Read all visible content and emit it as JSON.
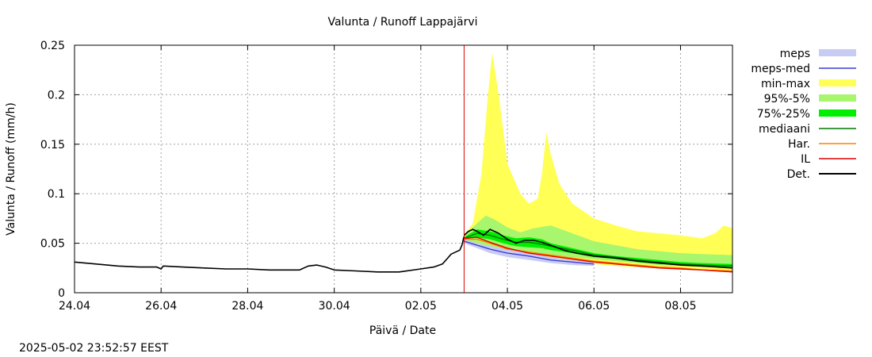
{
  "chart_data": {
    "type": "area",
    "title": "Valunta / Runoff  Lappajärvi",
    "xlabel": "Päivä / Date",
    "ylabel": "Valunta / Runoff (mm/h)",
    "timestamp": "2025-05-02 23:52:57 EEST",
    "x_unit": "days since 24.04",
    "xlim": [
      0,
      15.2
    ],
    "ylim": [
      0,
      0.25
    ],
    "x_ticks": [
      {
        "x": 0,
        "label": "24.04"
      },
      {
        "x": 2,
        "label": "26.04"
      },
      {
        "x": 4,
        "label": "28.04"
      },
      {
        "x": 6,
        "label": "30.04"
      },
      {
        "x": 8,
        "label": "02.05"
      },
      {
        "x": 10,
        "label": "04.05"
      },
      {
        "x": 12,
        "label": "06.05"
      },
      {
        "x": 14,
        "label": "08.05"
      }
    ],
    "y_ticks": [
      {
        "y": 0,
        "label": "0"
      },
      {
        "y": 0.05,
        "label": "0.05"
      },
      {
        "y": 0.1,
        "label": "0.1"
      },
      {
        "y": 0.15,
        "label": "0.15"
      },
      {
        "y": 0.2,
        "label": "0.2"
      },
      {
        "y": 0.25,
        "label": "0.25"
      }
    ],
    "grid": true,
    "forecast_start": 9.0,
    "legend_position": "outside-right",
    "legend": [
      {
        "label": "meps",
        "kind": "band",
        "color": "#c8ccf4"
      },
      {
        "label": "meps-med",
        "kind": "line",
        "color": "#3c3cd2"
      },
      {
        "label": "min-max",
        "kind": "band",
        "color": "#ffff55"
      },
      {
        "label": "95%-5%",
        "kind": "band",
        "color": "#a8f56e"
      },
      {
        "label": "75%-25%",
        "kind": "band",
        "color": "#00ee00"
      },
      {
        "label": "mediaani",
        "kind": "line",
        "color": "#007a00"
      },
      {
        "label": "Har.",
        "kind": "line",
        "color": "#ff8000"
      },
      {
        "label": "IL",
        "kind": "line",
        "color": "#e00000"
      },
      {
        "label": "Det.",
        "kind": "line",
        "color": "#000000"
      }
    ],
    "series": [
      {
        "name": "history",
        "type": "line",
        "color": "#000000",
        "x": [
          0,
          0.5,
          1,
          1.5,
          1.9,
          2.0,
          2.05,
          2.5,
          3,
          3.5,
          4,
          4.5,
          5,
          5.2,
          5.4,
          5.6,
          5.8,
          6,
          6.5,
          7,
          7.5,
          8,
          8.3,
          8.5,
          8.6,
          8.7,
          8.8,
          8.9,
          8.95,
          9.0
        ],
        "y": [
          0.031,
          0.029,
          0.027,
          0.026,
          0.026,
          0.024,
          0.027,
          0.026,
          0.025,
          0.024,
          0.024,
          0.023,
          0.023,
          0.023,
          0.027,
          0.028,
          0.026,
          0.023,
          0.022,
          0.021,
          0.021,
          0.024,
          0.026,
          0.029,
          0.034,
          0.039,
          0.041,
          0.043,
          0.048,
          0.057
        ]
      },
      {
        "name": "min-max",
        "type": "band",
        "color": "#ffff55",
        "x": [
          9.0,
          9.2,
          9.4,
          9.55,
          9.65,
          9.8,
          10.0,
          10.3,
          10.5,
          10.7,
          10.8,
          10.9,
          11.0,
          11.2,
          11.5,
          12.0,
          12.5,
          13.0,
          13.5,
          14.0,
          14.5,
          14.8,
          15.0,
          15.2
        ],
        "upper": [
          0.058,
          0.07,
          0.12,
          0.2,
          0.242,
          0.2,
          0.13,
          0.1,
          0.09,
          0.095,
          0.12,
          0.162,
          0.14,
          0.11,
          0.09,
          0.075,
          0.068,
          0.062,
          0.06,
          0.058,
          0.055,
          0.06,
          0.068,
          0.065
        ],
        "lower": [
          0.05,
          0.048,
          0.045,
          0.043,
          0.041,
          0.04,
          0.039,
          0.037,
          0.036,
          0.035,
          0.034,
          0.034,
          0.033,
          0.032,
          0.031,
          0.029,
          0.027,
          0.026,
          0.025,
          0.024,
          0.023,
          0.022,
          0.021,
          0.021
        ]
      },
      {
        "name": "95%-5%",
        "type": "band",
        "color": "#a8f56e",
        "x": [
          9.0,
          9.3,
          9.5,
          9.7,
          10.0,
          10.3,
          10.6,
          11.0,
          11.5,
          12.0,
          12.5,
          13.0,
          13.5,
          14.0,
          14.5,
          15.2
        ],
        "upper": [
          0.058,
          0.07,
          0.078,
          0.074,
          0.066,
          0.061,
          0.065,
          0.068,
          0.06,
          0.052,
          0.048,
          0.044,
          0.042,
          0.04,
          0.039,
          0.038
        ],
        "lower": [
          0.052,
          0.05,
          0.047,
          0.045,
          0.043,
          0.041,
          0.04,
          0.038,
          0.036,
          0.034,
          0.032,
          0.03,
          0.028,
          0.027,
          0.026,
          0.025
        ]
      },
      {
        "name": "75%-25%",
        "type": "band",
        "color": "#00ee00",
        "x": [
          9.0,
          9.3,
          9.6,
          9.9,
          10.2,
          10.5,
          10.8,
          11.0,
          11.5,
          12.0,
          12.5,
          13.0,
          13.5,
          14.0,
          14.5,
          15.2
        ],
        "upper": [
          0.056,
          0.064,
          0.062,
          0.058,
          0.055,
          0.056,
          0.054,
          0.05,
          0.045,
          0.04,
          0.037,
          0.035,
          0.033,
          0.031,
          0.03,
          0.029
        ],
        "lower": [
          0.054,
          0.056,
          0.054,
          0.05,
          0.047,
          0.046,
          0.045,
          0.043,
          0.04,
          0.036,
          0.034,
          0.031,
          0.029,
          0.028,
          0.027,
          0.026
        ]
      },
      {
        "name": "meps",
        "type": "band",
        "color": "#c8ccf4",
        "x": [
          9.0,
          9.3,
          9.6,
          10.0,
          10.5,
          11.0,
          11.5,
          12.0
        ],
        "upper": [
          0.054,
          0.05,
          0.047,
          0.044,
          0.04,
          0.036,
          0.033,
          0.031
        ],
        "lower": [
          0.05,
          0.045,
          0.04,
          0.036,
          0.033,
          0.03,
          0.028,
          0.027
        ]
      },
      {
        "name": "meps-med",
        "type": "line",
        "color": "#3c3cd2",
        "x": [
          9.0,
          9.3,
          9.6,
          10.0,
          10.5,
          11.0,
          11.5,
          12.0
        ],
        "y": [
          0.052,
          0.048,
          0.044,
          0.04,
          0.037,
          0.033,
          0.031,
          0.029
        ]
      },
      {
        "name": "mediaani",
        "type": "line",
        "color": "#007a00",
        "x": [
          9.0,
          9.3,
          9.6,
          9.9,
          10.2,
          10.5,
          10.8,
          11.0,
          11.5,
          12.0,
          12.5,
          13.0,
          13.5,
          14.0,
          14.5,
          15.2
        ],
        "y": [
          0.055,
          0.06,
          0.058,
          0.054,
          0.051,
          0.051,
          0.049,
          0.047,
          0.043,
          0.038,
          0.036,
          0.033,
          0.031,
          0.029,
          0.028,
          0.027
        ]
      },
      {
        "name": "Har.",
        "type": "line",
        "color": "#ff8000",
        "x": [
          9.0,
          9.3,
          9.6,
          10.0,
          10.5,
          11.0,
          11.5,
          12.0,
          12.5,
          13.0,
          13.5,
          14.0,
          14.5,
          15.2
        ],
        "y": [
          0.054,
          0.054,
          0.05,
          0.044,
          0.041,
          0.038,
          0.035,
          0.032,
          0.03,
          0.028,
          0.026,
          0.025,
          0.023,
          0.022
        ]
      },
      {
        "name": "IL",
        "type": "line",
        "color": "#e00000",
        "x": [
          9.0,
          9.3,
          9.6,
          10.0,
          10.5,
          11.0,
          11.5,
          12.0,
          12.5,
          13.0,
          13.5,
          14.0,
          14.5,
          15.2
        ],
        "y": [
          0.055,
          0.056,
          0.051,
          0.045,
          0.04,
          0.037,
          0.034,
          0.031,
          0.029,
          0.027,
          0.025,
          0.024,
          0.023,
          0.021
        ]
      },
      {
        "name": "Det.",
        "type": "line",
        "color": "#000000",
        "x": [
          9.0,
          9.1,
          9.2,
          9.3,
          9.45,
          9.6,
          9.8,
          10.0,
          10.2,
          10.4,
          10.6,
          10.8,
          11.0,
          11.3,
          11.6,
          12.0,
          12.5,
          13.0,
          13.5,
          14.0,
          14.5,
          15.2
        ],
        "y": [
          0.058,
          0.062,
          0.064,
          0.062,
          0.058,
          0.064,
          0.06,
          0.054,
          0.05,
          0.053,
          0.053,
          0.051,
          0.048,
          0.043,
          0.04,
          0.037,
          0.035,
          0.032,
          0.03,
          0.028,
          0.027,
          0.025
        ]
      }
    ]
  }
}
